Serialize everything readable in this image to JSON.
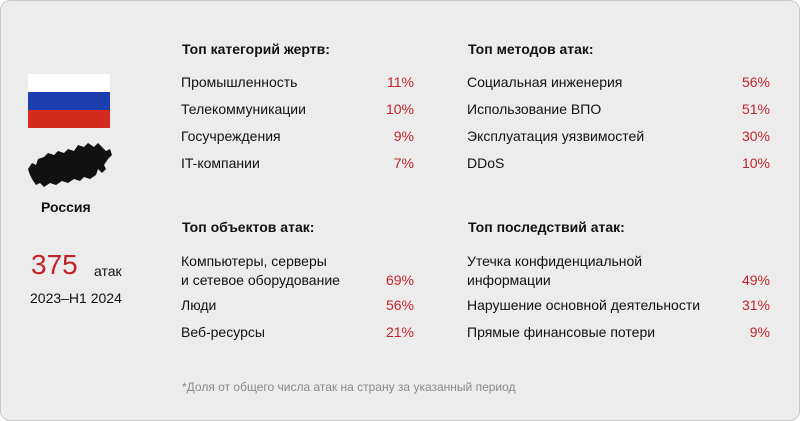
{
  "country": "Россия",
  "colors": {
    "accent": "#c0242a",
    "flag_white": "#ffffff",
    "flag_blue": "#1c3fb0",
    "flag_red": "#d52b1e"
  },
  "attacks": {
    "count": "375",
    "unit": "атак",
    "period": "2023–H1 2024"
  },
  "victims": {
    "title": "Топ категорий жертв:",
    "items": [
      {
        "label": "Промышленность",
        "value": "11%"
      },
      {
        "label": "Телекоммуникации",
        "value": "10%"
      },
      {
        "label": "Госучреждения",
        "value": "9%"
      },
      {
        "label": "IT-компании",
        "value": "7%"
      }
    ]
  },
  "methods": {
    "title": "Топ методов атак:",
    "items": [
      {
        "label": "Социальная инженерия",
        "value": "56%"
      },
      {
        "label": "Использование ВПО",
        "value": "51%"
      },
      {
        "label": "Эксплуатация уязвимостей",
        "value": "30%"
      },
      {
        "label": "DDoS",
        "value": "10%"
      }
    ]
  },
  "objects": {
    "title": "Топ объектов атак:",
    "items": [
      {
        "label_line1": "Компьютеры, серверы",
        "label_line2": "и сетевое оборудование",
        "value": "69%"
      },
      {
        "label": "Люди",
        "value": "56%"
      },
      {
        "label": "Веб-ресурсы",
        "value": "21%"
      }
    ]
  },
  "consequences": {
    "title": "Топ последствий атак:",
    "items": [
      {
        "label_line1": "Утечка конфиденциальной",
        "label_line2": "информации",
        "value": "49%"
      },
      {
        "label": "Нарушение основной деятельности",
        "value": "31%"
      },
      {
        "label": "Прямые финансовые потери",
        "value": "9%"
      }
    ]
  },
  "footnote": "*Доля от общего числа атак на страну за указанный период",
  "icons": {
    "flag": "russia-flag-icon",
    "map": "russia-map-icon"
  }
}
